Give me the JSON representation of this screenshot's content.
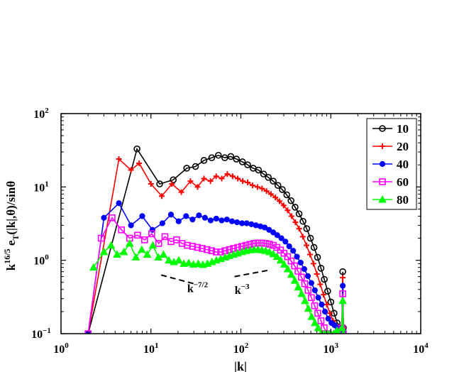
{
  "chart_data": {
    "type": "line",
    "xscale": "log",
    "yscale": "log",
    "xlim": [
      1,
      10000
    ],
    "ylim": [
      0.1,
      100
    ],
    "xlabel": "|k|",
    "ylabel": {
      "base": "k",
      "exp": "16/5",
      "text1": " e",
      "sub": "T",
      "text2": "(|k|,θ)/sinθ"
    },
    "xticks": [
      {
        "v": 1,
        "base": "10",
        "exp": "0"
      },
      {
        "v": 10,
        "base": "10",
        "exp": "1"
      },
      {
        "v": 100,
        "base": "10",
        "exp": "2"
      },
      {
        "v": 1000,
        "base": "10",
        "exp": "3"
      },
      {
        "v": 10000,
        "base": "10",
        "exp": "4"
      }
    ],
    "yticks": [
      {
        "v": 0.1,
        "base": "10",
        "exp": "−1"
      },
      {
        "v": 1,
        "base": "10",
        "exp": "0"
      },
      {
        "v": 10,
        "base": "10",
        "exp": "1"
      },
      {
        "v": 100,
        "base": "10",
        "exp": "2"
      }
    ],
    "legend_position": "top-right",
    "grid": false,
    "series": [
      {
        "name": "10",
        "color": "#000000",
        "marker": "circle",
        "x": [
          2.0,
          7.0,
          12.5,
          17.7,
          25.0,
          31.3,
          38.9,
          47.4,
          56.2,
          66.2,
          77.3,
          89.2,
          104,
          119,
          137,
          157,
          179,
          202,
          229,
          258,
          289,
          324,
          361,
          401,
          444,
          491,
          540,
          594,
          651,
          712,
          778,
          847,
          923,
          1002,
          1087,
          1178,
          1330,
          1358,
          1380
        ],
        "y": [
          0.1,
          33,
          11,
          12.5,
          18,
          19,
          23,
          25,
          27,
          25,
          26,
          24,
          22,
          20,
          18,
          17,
          15,
          13.5,
          12,
          10.5,
          9.2,
          7.8,
          6.5,
          5.3,
          4.3,
          3.4,
          2.7,
          2.0,
          1.5,
          1.1,
          0.78,
          0.55,
          0.38,
          0.27,
          0.19,
          0.14,
          0.12,
          0.7,
          0.12
        ]
      },
      {
        "name": "20",
        "color": "#ff0000",
        "marker": "plus",
        "x": [
          2.0,
          4.4,
          6.0,
          7.4,
          10.0,
          13.2,
          17.1,
          21.8,
          27.5,
          33.0,
          38.9,
          45.9,
          53.2,
          61.3,
          70.7,
          81.0,
          92.3,
          105,
          119,
          135,
          153,
          172,
          193,
          216,
          242,
          269,
          299,
          331,
          366,
          404,
          445,
          489,
          537,
          588,
          642,
          701,
          763,
          830,
          902,
          978,
          1059,
          1145,
          1330,
          1358,
          1380
        ],
        "y": [
          0.1,
          24,
          17,
          21,
          11,
          7.5,
          11,
          8.5,
          12,
          10,
          13,
          12,
          14,
          13,
          15,
          14,
          13,
          12,
          11.5,
          10.5,
          10,
          9.5,
          8.8,
          8,
          7.2,
          6.4,
          5.6,
          4.8,
          4.0,
          3.3,
          2.7,
          2.1,
          1.6,
          1.2,
          0.9,
          0.65,
          0.47,
          0.34,
          0.25,
          0.19,
          0.15,
          0.13,
          0.12,
          0.58,
          0.12
        ]
      },
      {
        "name": "40",
        "color": "#0000ff",
        "marker": "dot",
        "x": [
          2.0,
          3.0,
          4.4,
          6.0,
          8.0,
          10.4,
          13.4,
          16.7,
          20.3,
          24.6,
          29.0,
          34.2,
          39.9,
          46.1,
          53.2,
          61.2,
          69.9,
          79.7,
          90.7,
          103,
          116,
          131,
          147,
          165,
          184,
          206,
          229,
          254,
          282,
          313,
          345,
          381,
          420,
          462,
          507,
          556,
          608,
          665,
          726,
          791,
          861,
          937,
          1017,
          1104,
          1196,
          1330,
          1358,
          1380
        ],
        "y": [
          0.1,
          3.8,
          6.0,
          3.0,
          4.0,
          2.6,
          3.2,
          4.2,
          3.4,
          4.0,
          3.6,
          4.1,
          3.8,
          3.5,
          3.7,
          3.5,
          3.6,
          3.4,
          3.3,
          3.2,
          3.2,
          3.1,
          3.0,
          2.9,
          2.8,
          2.6,
          2.4,
          2.2,
          2.0,
          1.8,
          1.55,
          1.35,
          1.12,
          0.93,
          0.76,
          0.61,
          0.49,
          0.39,
          0.31,
          0.25,
          0.2,
          0.16,
          0.14,
          0.13,
          0.12,
          0.11,
          0.45,
          0.11
        ]
      },
      {
        "name": "60",
        "color": "#ff00ff",
        "marker": "square",
        "x": [
          2.0,
          2.8,
          3.7,
          4.7,
          5.8,
          7.1,
          8.5,
          10.2,
          12.2,
          14.3,
          16.7,
          19.3,
          22.2,
          25.4,
          29.0,
          32.9,
          37.2,
          42.0,
          47.3,
          53.1,
          59.5,
          66.6,
          74.4,
          82.9,
          92.3,
          103,
          114,
          126,
          140,
          155,
          171,
          189,
          208,
          229,
          251,
          276,
          302,
          331,
          362,
          396,
          432,
          471,
          513,
          559,
          608,
          661,
          717,
          778,
          843,
          913,
          987,
          1066,
          1151,
          1330,
          1358,
          1380
        ],
        "y": [
          0.1,
          2.0,
          3.8,
          2.6,
          2.0,
          2.2,
          1.9,
          2.3,
          1.7,
          2.1,
          1.8,
          1.9,
          1.7,
          1.6,
          1.55,
          1.5,
          1.45,
          1.4,
          1.35,
          1.3,
          1.3,
          1.35,
          1.4,
          1.45,
          1.5,
          1.55,
          1.6,
          1.65,
          1.7,
          1.72,
          1.72,
          1.7,
          1.66,
          1.6,
          1.5,
          1.38,
          1.25,
          1.12,
          0.98,
          0.84,
          0.71,
          0.59,
          0.48,
          0.39,
          0.31,
          0.24,
          0.19,
          0.15,
          0.12,
          0.1,
          0.09,
          0.09,
          0.1,
          0.12,
          0.35,
          0.1
        ]
      },
      {
        "name": "80",
        "color": "#00ff00",
        "marker": "triangle",
        "x": [
          2.3,
          3.0,
          3.6,
          4.2,
          5.0,
          5.8,
          6.8,
          7.9,
          9.1,
          10.5,
          12.1,
          13.8,
          15.8,
          18.0,
          20.4,
          23.2,
          26.3,
          29.7,
          33.6,
          37.8,
          42.5,
          47.7,
          53.4,
          59.8,
          66.8,
          74.5,
          83.0,
          92.4,
          103,
          114,
          127,
          140,
          155,
          171,
          189,
          208,
          229,
          252,
          277,
          303,
          332,
          364,
          398,
          434,
          474,
          517,
          563,
          612,
          666,
          723,
          785,
          852,
          924,
          1001,
          1084,
          1172,
          1330,
          1358,
          1380
        ],
        "y": [
          0.8,
          1.3,
          1.6,
          1.2,
          1.3,
          1.7,
          1.1,
          1.4,
          1.2,
          1.6,
          1.1,
          1.2,
          1.0,
          0.95,
          1.0,
          0.9,
          0.92,
          0.88,
          0.9,
          0.87,
          0.9,
          0.95,
          1.0,
          1.05,
          1.1,
          1.15,
          1.2,
          1.25,
          1.3,
          1.35,
          1.38,
          1.4,
          1.4,
          1.38,
          1.35,
          1.3,
          1.22,
          1.12,
          1.0,
          0.88,
          0.76,
          0.64,
          0.53,
          0.43,
          0.35,
          0.28,
          0.22,
          0.17,
          0.14,
          0.12,
          0.1,
          0.1,
          0.1,
          0.1,
          0.1,
          0.11,
          0.12,
          0.28,
          0.1
        ]
      }
    ],
    "annotations": [
      {
        "base": "k",
        "exp": "−7/2",
        "x": 33,
        "y": 0.42
      },
      {
        "base": "k",
        "exp": "−3",
        "x": 103,
        "y": 0.4
      }
    ],
    "guide_lines": [
      {
        "slope": "−7/2",
        "x": [
          13,
          30
        ],
        "y": [
          0.63,
          0.48
        ]
      },
      {
        "slope": "−3",
        "x": [
          85,
          200
        ],
        "y": [
          0.6,
          0.73
        ]
      }
    ]
  }
}
